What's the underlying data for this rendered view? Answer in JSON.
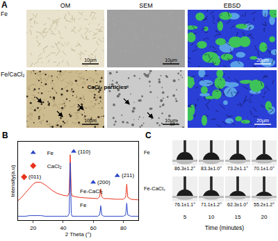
{
  "panels": {
    "A": {
      "letter": "A",
      "columns": [
        "OM",
        "SEM",
        "EBSD"
      ],
      "rows": [
        "Fe",
        "Fe/CaCl₂"
      ],
      "scale_bars": [
        "10μm",
        "10μm",
        "20μm"
      ],
      "annotation": "CaCl₂ particles"
    },
    "B": {
      "letter": "B"
    },
    "C": {
      "letter": "C",
      "x_label": "Time (minutes)",
      "x_ticks": [
        5,
        10,
        15,
        20
      ],
      "rows": [
        {
          "label": "Fe",
          "angles": [
            {
              "value": 86.3,
              "label": "86.3±1.2°"
            },
            {
              "value": 83.3,
              "label": "83.3±1.0°"
            },
            {
              "value": 73.2,
              "label": "73.2±1.1°"
            },
            {
              "value": 70.1,
              "label": "70.1±1.0°"
            }
          ]
        },
        {
          "label": "Fe-CaCl₂",
          "angles": [
            {
              "value": 76.1,
              "label": "76.1±1.1°"
            },
            {
              "value": 71.1,
              "label": "71.1±1.2°"
            },
            {
              "value": 62.3,
              "label": "62.3±1.0°"
            },
            {
              "value": 55.2,
              "label": "55.2±1.2°"
            }
          ]
        }
      ]
    }
  },
  "chart_data": {
    "type": "line",
    "x_label": "2 Theta (°)",
    "y_label": "Intensity(a.u)",
    "x": [
      10,
      12,
      15,
      18,
      20,
      22,
      25,
      28,
      30,
      33,
      36,
      40,
      43,
      44,
      44.7,
      45.4,
      46,
      50,
      55,
      60,
      63,
      64.3,
      65,
      65.7,
      67,
      70,
      75,
      80,
      81.6,
      82.3,
      83,
      85,
      90
    ],
    "series": [
      {
        "name": "Fe-CaCl₂",
        "color": "#e8321e",
        "values": [
          0.3,
          0.34,
          0.42,
          0.5,
          0.55,
          0.58,
          0.58,
          0.54,
          0.5,
          0.45,
          0.41,
          0.38,
          0.37,
          0.42,
          1.0,
          0.42,
          0.37,
          0.35,
          0.34,
          0.33,
          0.33,
          0.36,
          0.48,
          0.36,
          0.33,
          0.33,
          0.32,
          0.32,
          0.35,
          0.55,
          0.35,
          0.32,
          0.31
        ]
      },
      {
        "name": "Fe",
        "color": "#2a45c8",
        "values": [
          0.06,
          0.06,
          0.06,
          0.07,
          0.07,
          0.07,
          0.07,
          0.06,
          0.06,
          0.06,
          0.06,
          0.06,
          0.06,
          0.1,
          0.88,
          0.1,
          0.06,
          0.06,
          0.06,
          0.06,
          0.06,
          0.08,
          0.22,
          0.08,
          0.06,
          0.06,
          0.06,
          0.06,
          0.08,
          0.26,
          0.08,
          0.06,
          0.06
        ]
      }
    ],
    "xlim": [
      10,
      90
    ],
    "xticks": [
      20,
      40,
      60,
      80
    ],
    "ylim": [
      0,
      1.2
    ],
    "tick_labels": "x",
    "legend": "top-left",
    "phases": [
      {
        "name": "Fe",
        "color": "#2a45c8",
        "marker": "triangle-up"
      },
      {
        "name": "CaCl₂",
        "color": "#e8321e",
        "marker": "diamond"
      }
    ],
    "peaks": [
      {
        "phase": "Fe",
        "label": "(110)",
        "x": 47,
        "y": 1.05
      },
      {
        "phase": "Fe",
        "label": "(200)",
        "x": 60,
        "y": 0.58
      },
      {
        "phase": "Fe",
        "label": "(211)",
        "x": 76,
        "y": 0.68
      },
      {
        "phase": "CaCl₂",
        "label": "(011)",
        "x": 14,
        "y": 0.66
      }
    ]
  }
}
